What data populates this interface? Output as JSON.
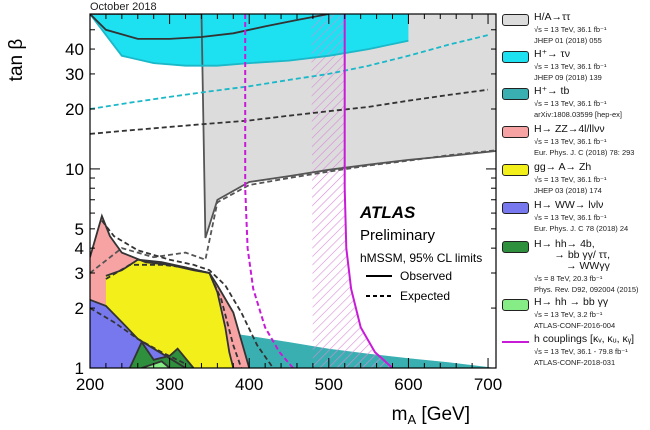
{
  "date_label": "October 2018",
  "annotation": {
    "experiment": "ATLAS",
    "status": "Preliminary",
    "model": "hMSSM, 95% CL limits",
    "observed_label": "Observed",
    "expected_label": "Expected"
  },
  "legend": [
    {
      "label": "H/A→ττ",
      "sub": [
        "√s = 13 TeV, 36.1 fb⁻¹",
        "JHEP 01 (2018) 055"
      ],
      "color": "#dcdcdc",
      "style": "box"
    },
    {
      "label": "H⁺→ τν",
      "sub": [
        "√s = 13 TeV, 36.1 fb⁻¹",
        "JHEP 09 (2018) 139"
      ],
      "color": "#1de0f0",
      "style": "box"
    },
    {
      "label": "H⁺→ tb",
      "sub": [
        "√s = 13 TeV, 36.1 fb⁻¹",
        "arXiv:1808.03599 [hep-ex]"
      ],
      "color": "#3aafb1",
      "style": "box"
    },
    {
      "label": "H→ ZZ→4l/llνν",
      "sub": [
        "√s = 13 TeV, 36.1 fb⁻¹",
        "Eur. Phys. J. C (2018) 78: 293"
      ],
      "color": "#f7a3a3",
      "style": "box"
    },
    {
      "label": "gg→ A→ Zh",
      "sub": [
        "√s = 13 TeV, 36.1 fb⁻¹",
        "JHEP 03 (2018) 174"
      ],
      "color": "#f2ef1a",
      "style": "box"
    },
    {
      "label": "H→ WW→ lνlν",
      "sub": [
        "√s = 13 TeV, 36.1 fb⁻¹",
        "Eur. Phys. J. C 78 (2018) 24"
      ],
      "color": "#7777ee",
      "style": "box"
    },
    {
      "label": "H→ hh→ 4b,\n       → bb γγ/ ττ,\n           → WWγγ",
      "sub": [
        "√s = 8 TeV, 20.3 fb⁻¹",
        "Phys. Rev. D92, 092004 (2015)"
      ],
      "color": "#2e8f3c",
      "style": "box"
    },
    {
      "label": "H→ hh → bb γγ",
      "sub": [
        "√s = 13 TeV, 3.2 fb⁻¹",
        "ATLAS-CONF-2016-004"
      ],
      "color": "#86ec86",
      "style": "box"
    },
    {
      "label": "h couplings [κᵥ, κᵤ, κᵧ]",
      "sub": [
        "√s = 13 TeV, 36.1 - 79.8 fb⁻¹",
        "ATLAS-CONF-2018-031"
      ],
      "color": "#c81bd8",
      "style": "line"
    }
  ],
  "chart_data": {
    "type": "area",
    "xlabel": "m_A [GeV]",
    "ylabel": "tan β",
    "xlim": [
      200,
      710
    ],
    "ylim": [
      1,
      60
    ],
    "yscale": "log",
    "xticks": [
      200,
      300,
      400,
      500,
      600,
      700
    ],
    "yticks_major": [
      1,
      10
    ],
    "yticks_labeled": [
      1,
      2,
      3,
      4,
      5,
      10,
      20,
      30,
      40
    ],
    "series": [
      {
        "name": "H/A→ττ",
        "color": "#dcdcdc",
        "observed": {
          "x": [
            200,
            250,
            300,
            340,
            345,
            360,
            400,
            450,
            500,
            550,
            600,
            650,
            710
          ],
          "y": [
            60,
            60,
            60,
            60,
            4.5,
            7,
            8.6,
            9.2,
            9.9,
            10.5,
            11.1,
            11.6,
            12.3
          ]
        },
        "expected": {
          "x": [
            200,
            240,
            280,
            320,
            345,
            360,
            400,
            450,
            500,
            550,
            600,
            650,
            710
          ],
          "y": [
            3.0,
            4.0,
            3.6,
            3.8,
            3.5,
            6.8,
            8.3,
            9.0,
            9.7,
            10.4,
            11.0,
            11.7,
            12.4
          ]
        }
      },
      {
        "name": "H⁺→ τν",
        "color": "#1de0f0",
        "observed": {
          "x": [
            200,
            240,
            280,
            320,
            360,
            400,
            450,
            500,
            550,
            600
          ],
          "y": [
            60,
            37,
            34,
            33,
            33,
            34,
            35,
            37,
            40,
            44
          ]
        },
        "expected": {
          "x": [
            200,
            250,
            300,
            350,
            400,
            450,
            500,
            550,
            600,
            650,
            700
          ],
          "y": [
            20,
            21.5,
            23,
            24.5,
            26,
            28,
            30,
            33,
            37,
            42,
            47
          ]
        }
      },
      {
        "name": "H⁺→ tb",
        "color": "#3aafb1",
        "observed": {
          "x": [
            200,
            220,
            260,
            300,
            340,
            380,
            420,
            460,
            500
          ],
          "y": [
            60,
            50,
            45,
            45,
            46,
            48,
            52,
            56,
            60
          ]
        },
        "expected": {
          "x": [
            200,
            240,
            280,
            320,
            360,
            400,
            450,
            500,
            550,
            600,
            650,
            700
          ],
          "y": [
            15,
            15.5,
            16,
            16.5,
            17,
            17.5,
            18.5,
            19.5,
            20.5,
            22,
            23.5,
            25
          ]
        }
      },
      {
        "name": "H→ ZZ→4l/llνν",
        "color": "#f7a3a3",
        "observed": {
          "x": [
            200,
            215,
            225,
            240,
            270,
            300,
            330,
            350,
            360,
            380,
            400
          ],
          "y": [
            3.6,
            5.8,
            4.6,
            3.8,
            3.4,
            3.3,
            3.1,
            3.0,
            2.6,
            1.9,
            1.0
          ]
        },
        "expected": {
          "x": [
            215,
            230,
            260,
            300,
            330,
            350,
            370,
            390,
            410,
            430
          ],
          "y": [
            5.5,
            4.6,
            3.9,
            3.5,
            3.3,
            3.1,
            2.6,
            1.9,
            1.3,
            1.0
          ]
        }
      },
      {
        "name": "gg→ A→ Zh",
        "color": "#f2ef1a",
        "observed": {
          "x": [
            220,
            240,
            260,
            290,
            320,
            350,
            360,
            370,
            375,
            380
          ],
          "y": [
            2.9,
            3.1,
            3.5,
            3.4,
            3.2,
            3.0,
            2.4,
            1.6,
            1.2,
            1.0
          ]
        },
        "expected": {
          "x": [
            220,
            250,
            290,
            320,
            350,
            365,
            380,
            390
          ],
          "y": [
            2.8,
            3.3,
            3.3,
            3.2,
            3.0,
            2.2,
            1.3,
            1.0
          ]
        }
      },
      {
        "name": "H→ WW→ lνlν",
        "color": "#7777ee",
        "observed": {
          "x": [
            200,
            220,
            240,
            260,
            280,
            300,
            320
          ],
          "y": [
            2.2,
            2.05,
            1.7,
            1.4,
            1.25,
            1.12,
            1.0
          ]
        },
        "expected": {
          "x": [
            200,
            230,
            260,
            290,
            320
          ],
          "y": [
            2.0,
            1.7,
            1.4,
            1.2,
            1.05
          ]
        }
      },
      {
        "name": "H→ hh→ 4b, → bb γγ/ ττ, → WWγγ",
        "color": "#2e8f3c",
        "observed": {
          "x": [
            250,
            265,
            280,
            300,
            310,
            330
          ],
          "y": [
            1.0,
            1.35,
            1.1,
            1.15,
            1.25,
            1.0
          ]
        }
      },
      {
        "name": "H→ hh → bb γγ",
        "color": "#86ec86",
        "observed": {
          "x": [
            265,
            290,
            300
          ],
          "y": [
            1.0,
            1.08,
            1.0
          ]
        }
      },
      {
        "name": "h couplings [κᵥ, κᵤ, κᵧ]",
        "color": "#c81bd8",
        "observed": {
          "x": [
            520,
            520,
            520,
            522,
            528,
            540,
            558,
            580
          ],
          "y": [
            60,
            20,
            8,
            4,
            2.5,
            1.6,
            1.2,
            1.0
          ]
        },
        "expected": {
          "x": [
            395,
            395,
            395,
            398,
            405,
            420,
            438,
            455
          ],
          "y": [
            60,
            20,
            8,
            4,
            2.5,
            1.6,
            1.2,
            1.0
          ]
        }
      }
    ]
  }
}
